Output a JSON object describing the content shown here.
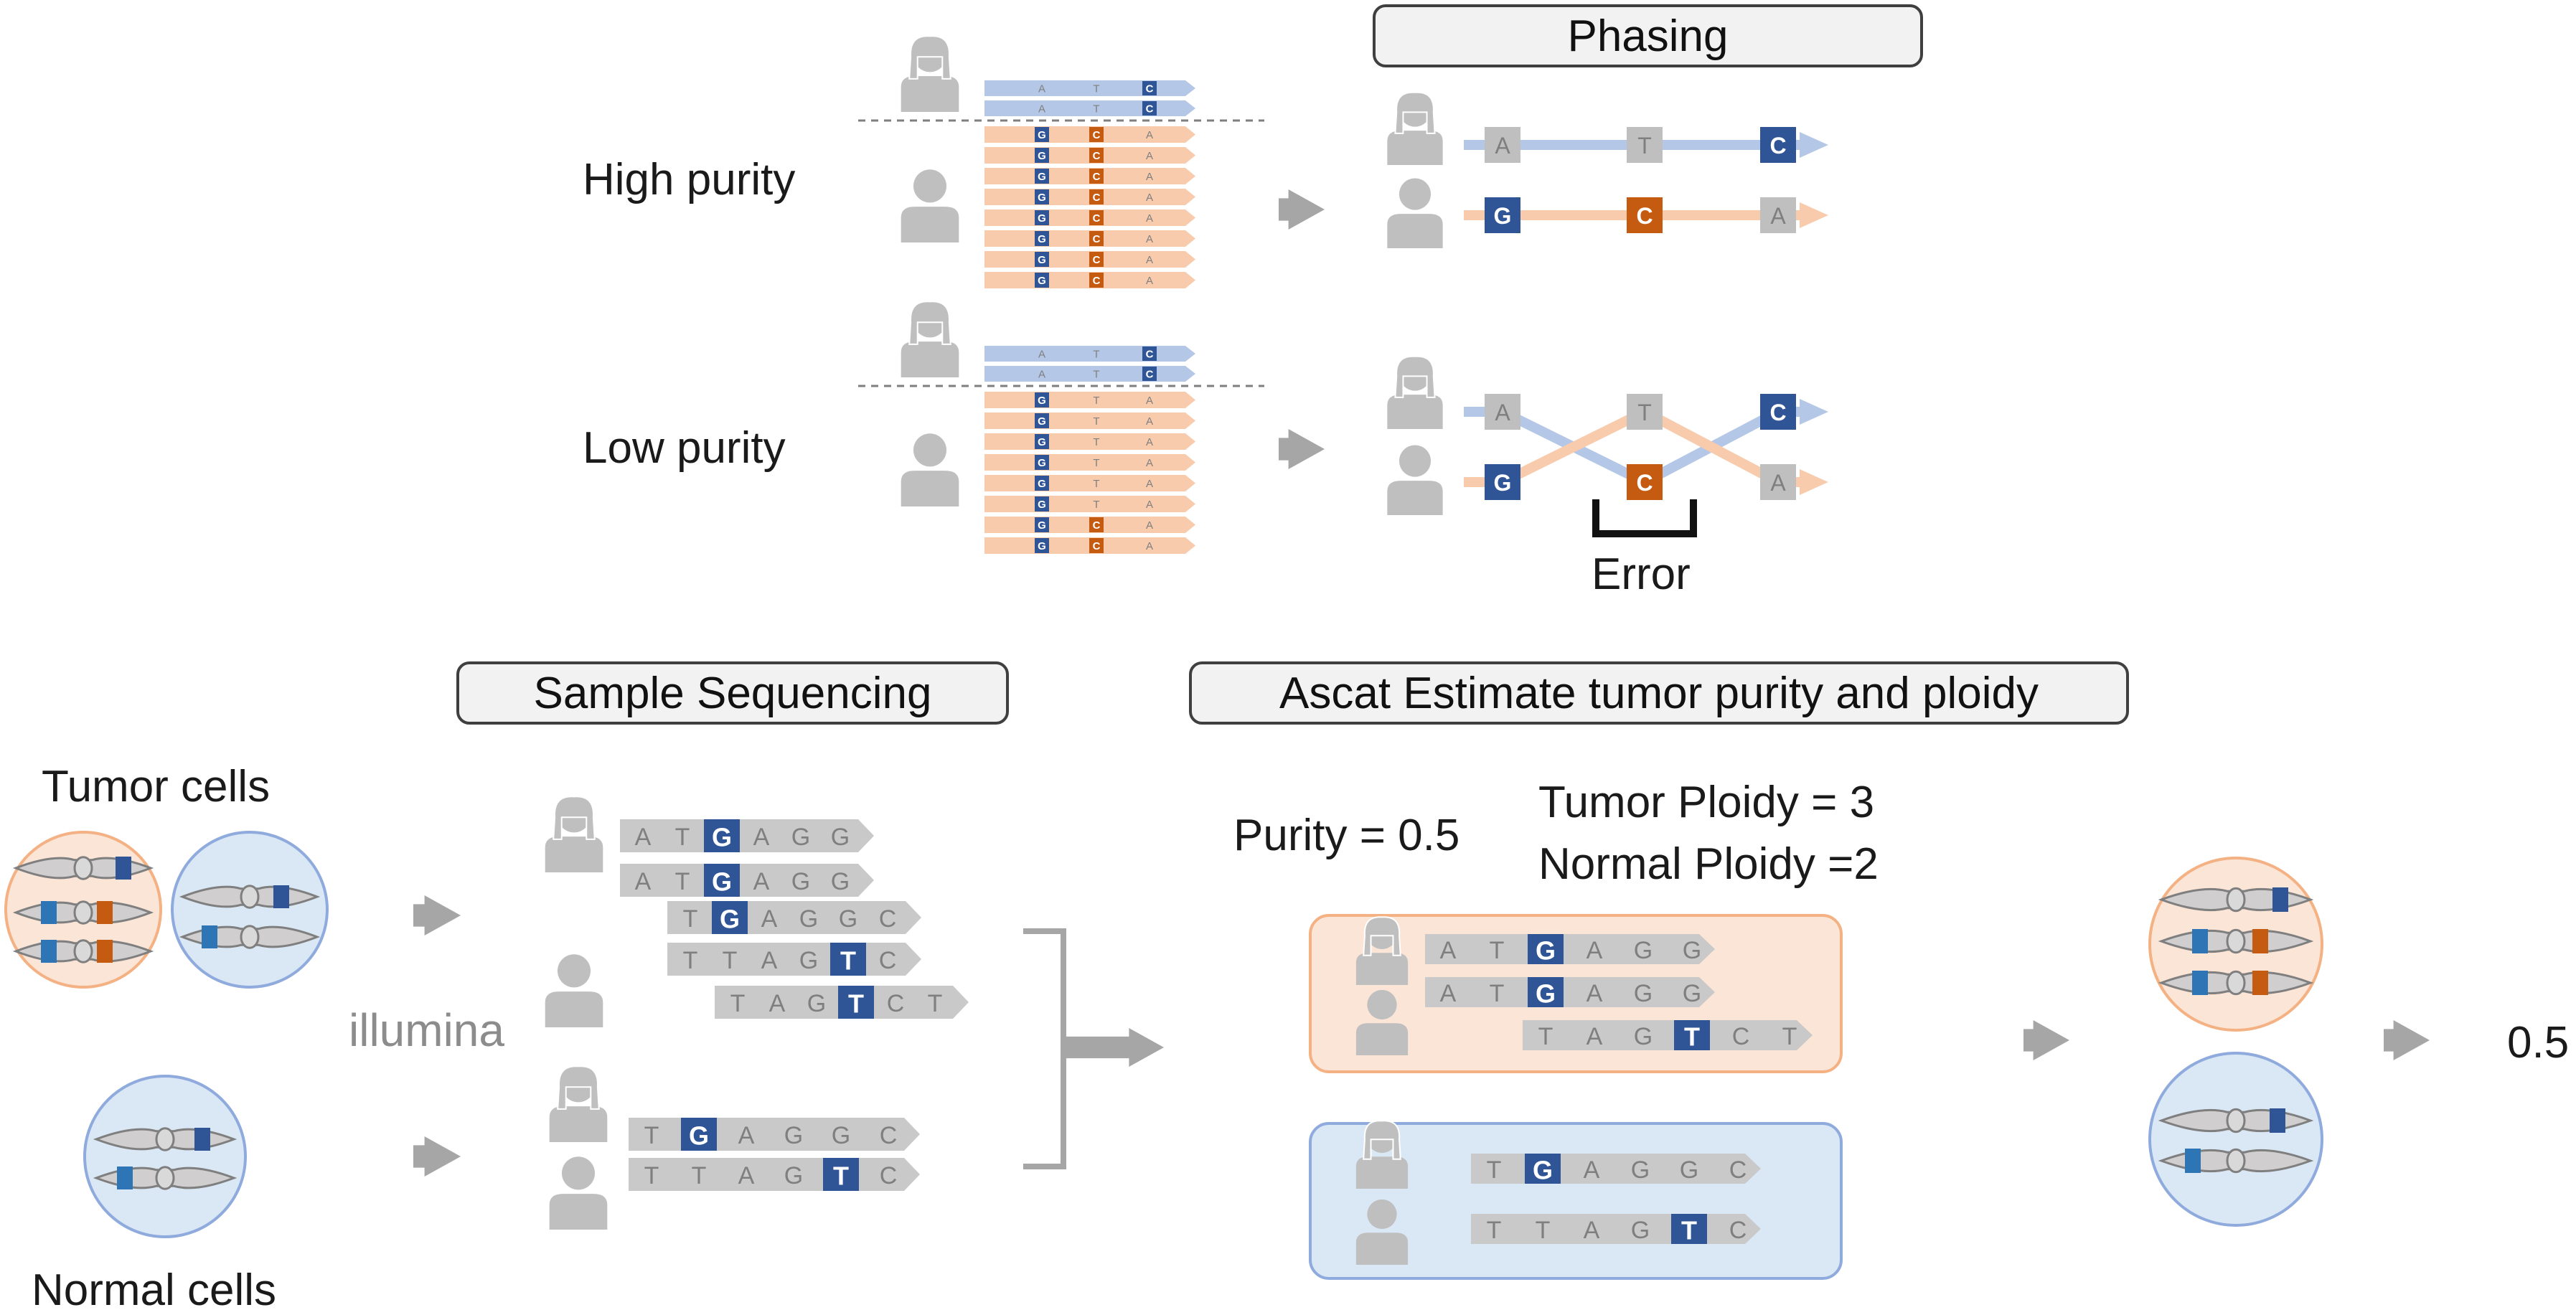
{
  "titles": {
    "phasing": "Phasing",
    "sample_sequencing": "Sample Sequencing",
    "ascat": "Ascat Estimate tumor purity and ploidy"
  },
  "labels": {
    "high_purity": "High purity",
    "low_purity": "Low purity",
    "error": "Error",
    "tumor_cells": "Tumor cells",
    "normal_cells": "Normal cells",
    "illumina": "illumina",
    "purity": "Purity = 0.5",
    "tumor_ploidy": "Tumor Ploidy = 3",
    "normal_ploidy": "Normal Ploidy =2",
    "result": "0.5"
  },
  "colors": {
    "maternal_read": "#b4c7e7",
    "paternal_read": "#f8cbad",
    "dark_blue": "#2f5597",
    "orange": "#c55a11",
    "light_blue_mark": "#2e75b6",
    "gray_read": "#c9c9c9",
    "gray_base": "#bfbfbf",
    "arrow_gray": "#a6a6a6",
    "tumor_cell_fill": "#fbe5d6",
    "tumor_cell_stroke": "#f4b183",
    "normal_cell_fill": "#dae8f5",
    "normal_cell_stroke": "#8faadc",
    "person_icon": "#bfbfbf"
  },
  "phasing": {
    "high_purity": {
      "maternal_reads": [
        [
          "",
          "A",
          "",
          "T",
          "C"
        ],
        [
          "",
          "A",
          "",
          "T",
          "C"
        ]
      ],
      "paternal_reads": [
        [
          "G",
          "C",
          "A"
        ],
        [
          "G",
          "C",
          "A"
        ],
        [
          "G",
          "C",
          "A"
        ],
        [
          "G",
          "C",
          "A"
        ],
        [
          "G",
          "C",
          "A"
        ],
        [
          "G",
          "C",
          "A"
        ],
        [
          "G",
          "C",
          "A"
        ],
        [
          "G",
          "C",
          "A"
        ]
      ],
      "haplotypes": [
        [
          "A",
          "T",
          "C"
        ],
        [
          "G",
          "C",
          "A"
        ]
      ]
    },
    "low_purity": {
      "maternal_reads": [
        [
          "",
          "A",
          "",
          "T",
          "C"
        ],
        [
          "",
          "A",
          "",
          "T",
          "C"
        ]
      ],
      "paternal_reads": [
        [
          "G",
          "T",
          "A"
        ],
        [
          "G",
          "T",
          "A"
        ],
        [
          "G",
          "T",
          "A"
        ],
        [
          "G",
          "T",
          "A"
        ],
        [
          "G",
          "T",
          "A"
        ],
        [
          "G",
          "T",
          "A"
        ],
        [
          "G",
          "C",
          "A"
        ],
        [
          "G",
          "C",
          "A"
        ]
      ],
      "haplotypes": [
        [
          "A",
          "T",
          "C"
        ],
        [
          "G",
          "C",
          "A"
        ]
      ]
    }
  },
  "sequencing": {
    "tumor_reads": [
      [
        "A",
        "T",
        "G",
        "A",
        "G",
        "G"
      ],
      [
        "A",
        "T",
        "G",
        "A",
        "G",
        "G"
      ],
      [
        "T",
        "G",
        "A",
        "G",
        "G",
        "C"
      ],
      [
        "T",
        "T",
        "A",
        "G",
        "T",
        "C"
      ],
      [
        "T",
        "A",
        "G",
        "T",
        "C",
        "T"
      ]
    ],
    "normal_reads": [
      [
        "T",
        "G",
        "A",
        "G",
        "G",
        "C"
      ],
      [
        "T",
        "T",
        "A",
        "G",
        "T",
        "C"
      ]
    ]
  },
  "ascat": {
    "tumor_reads": [
      [
        "A",
        "T",
        "G",
        "A",
        "G",
        "G"
      ],
      [
        "A",
        "T",
        "G",
        "A",
        "G",
        "G"
      ],
      [
        "T",
        "A",
        "G",
        "T",
        "C",
        "T"
      ]
    ],
    "normal_reads": [
      [
        "T",
        "G",
        "A",
        "G",
        "G",
        "C"
      ],
      [
        "T",
        "T",
        "A",
        "G",
        "T",
        "C"
      ]
    ]
  }
}
